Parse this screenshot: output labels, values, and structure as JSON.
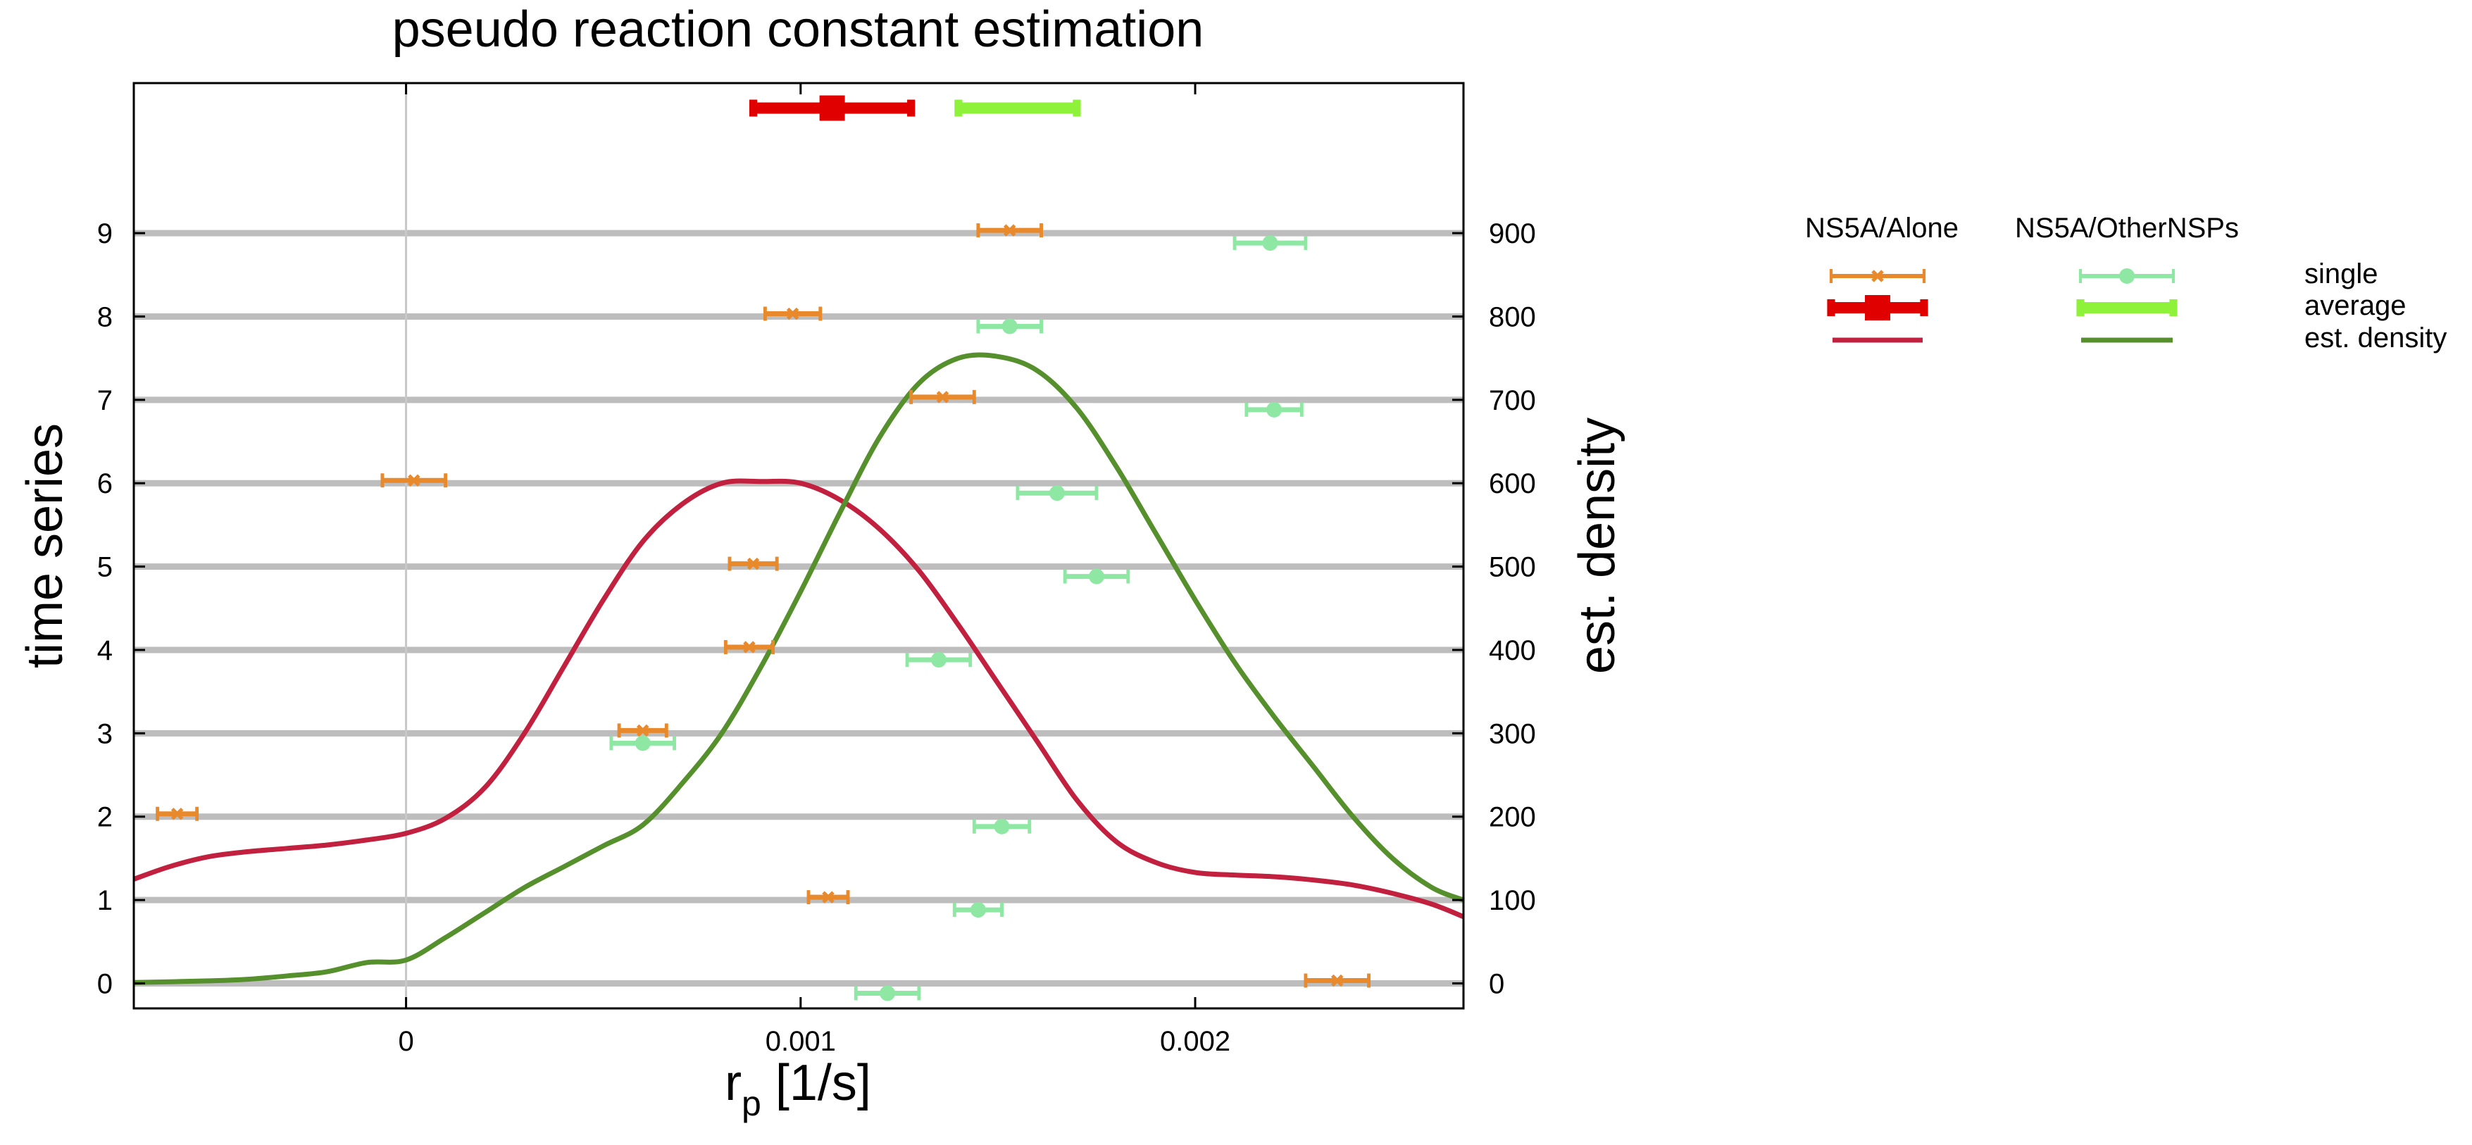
{
  "chart_data": {
    "type": "errorbar-scatter-with-density",
    "title": "pseudo reaction constant estimation",
    "xlabel_main": "r",
    "xlabel_sub": "p",
    "xlabel_unit": " [1/s]",
    "ylabel_left": "time series",
    "ylabel_right": "est. density",
    "xlim": [
      -0.00069,
      0.00268
    ],
    "ylim_left": [
      -0.3,
      10.8
    ],
    "ylim_right": [
      -30,
      1080
    ],
    "x_ticks": [
      0,
      0.001,
      0.002
    ],
    "x_tick_labels": [
      "0",
      "0.001",
      "0.002"
    ],
    "y_left_ticks": [
      0,
      1,
      2,
      3,
      4,
      5,
      6,
      7,
      8,
      9
    ],
    "y_left_tick_labels": [
      "0",
      "1",
      "2",
      "3",
      "4",
      "5",
      "6",
      "7",
      "8",
      "9"
    ],
    "y_right_ticks": [
      0,
      100,
      200,
      300,
      400,
      500,
      600,
      700,
      800,
      900
    ],
    "y_right_tick_labels": [
      "0",
      "100",
      "200",
      "300",
      "400",
      "500",
      "600",
      "700",
      "800",
      "900"
    ],
    "reference_line_x": 0,
    "legend": {
      "position": "right-outside",
      "groups": [
        "NS5A/Alone",
        "NS5A/OtherNSPs"
      ],
      "rows": [
        "single",
        "average",
        "est. density"
      ]
    },
    "colors": {
      "alone_single": "#e8892b",
      "alone_avg": "#e00000",
      "alone_density": "#c2203f",
      "other_single": "#8ee8a4",
      "other_avg": "#8ef23a",
      "other_density": "#56902d",
      "grid": "#bdbdbd",
      "vline": "#c8c8c8"
    },
    "series": [
      {
        "name": "NS5A/Alone",
        "role": "single",
        "points": [
          {
            "y": 0,
            "x": 0.00236,
            "err": 8e-05
          },
          {
            "y": 1,
            "x": 0.00107,
            "err": 5e-05
          },
          {
            "y": 2,
            "x": -0.00058,
            "err": 5e-05
          },
          {
            "y": 3,
            "x": 0.0006,
            "err": 6e-05
          },
          {
            "y": 4,
            "x": 0.00087,
            "err": 6e-05
          },
          {
            "y": 5,
            "x": 0.00088,
            "err": 6e-05
          },
          {
            "y": 6,
            "x": 2e-05,
            "err": 8e-05
          },
          {
            "y": 7,
            "x": 0.00136,
            "err": 8e-05
          },
          {
            "y": 8,
            "x": 0.00098,
            "err": 7e-05
          },
          {
            "y": 9,
            "x": 0.00153,
            "err": 8e-05
          }
        ]
      },
      {
        "name": "NS5A/OtherNSPs",
        "role": "single",
        "points": [
          {
            "y": 0,
            "x": 0.00122,
            "err": 8e-05
          },
          {
            "y": 1,
            "x": 0.00145,
            "err": 6e-05
          },
          {
            "y": 2,
            "x": 0.00151,
            "err": 7e-05
          },
          {
            "y": 3,
            "x": 0.0006,
            "err": 8e-05
          },
          {
            "y": 4,
            "x": 0.00135,
            "err": 8e-05
          },
          {
            "y": 5,
            "x": 0.00175,
            "err": 8e-05
          },
          {
            "y": 6,
            "x": 0.00165,
            "err": 0.0001
          },
          {
            "y": 7,
            "x": 0.0022,
            "err": 7e-05
          },
          {
            "y": 8,
            "x": 0.00153,
            "err": 8e-05
          },
          {
            "y": 9,
            "x": 0.00219,
            "err": 9e-05
          }
        ]
      },
      {
        "name": "NS5A/Alone",
        "role": "average",
        "points": [
          {
            "y": 10.5,
            "x": 0.00108,
            "err": 0.0002
          }
        ]
      },
      {
        "name": "NS5A/OtherNSPs",
        "role": "average",
        "points": [
          {
            "y": 10.5,
            "x": 0.00155,
            "err": 0.00015
          }
        ]
      },
      {
        "name": "NS5A/Alone",
        "role": "est. density",
        "x": [
          -0.00069,
          -0.0006,
          -0.0005,
          -0.0004,
          -0.0003,
          -0.0002,
          -0.0001,
          0.0,
          0.0001,
          0.0002,
          0.0003,
          0.0004,
          0.0005,
          0.0006,
          0.0007,
          0.0008,
          0.0009,
          0.001,
          0.0011,
          0.0012,
          0.0013,
          0.0014,
          0.0015,
          0.0016,
          0.0017,
          0.0018,
          0.0019,
          0.002,
          0.0021,
          0.0022,
          0.0023,
          0.0024,
          0.0025,
          0.0026,
          0.00268
        ],
        "y": [
          125,
          140,
          152,
          158,
          162,
          166,
          172,
          180,
          198,
          235,
          300,
          380,
          460,
          530,
          575,
          600,
          602,
          600,
          580,
          545,
          495,
          430,
          360,
          290,
          220,
          170,
          145,
          133,
          130,
          128,
          124,
          118,
          108,
          95,
          80
        ]
      },
      {
        "name": "NS5A/OtherNSPs",
        "role": "est. density",
        "x": [
          -0.00069,
          -0.0005,
          -0.0004,
          -0.0003,
          -0.0002,
          -0.0001,
          0.0,
          0.0001,
          0.0002,
          0.0003,
          0.0004,
          0.0005,
          0.0006,
          0.0007,
          0.0008,
          0.0009,
          0.001,
          0.0011,
          0.0012,
          0.0013,
          0.0014,
          0.0015,
          0.0016,
          0.0017,
          0.0018,
          0.0019,
          0.002,
          0.0021,
          0.0022,
          0.0023,
          0.0024,
          0.0025,
          0.0026,
          0.00268
        ],
        "y": [
          1,
          3,
          5,
          9,
          14,
          25,
          28,
          55,
          85,
          115,
          140,
          165,
          190,
          240,
          300,
          380,
          470,
          565,
          655,
          720,
          750,
          752,
          735,
          690,
          620,
          540,
          460,
          385,
          320,
          260,
          200,
          150,
          115,
          100
        ]
      }
    ]
  }
}
